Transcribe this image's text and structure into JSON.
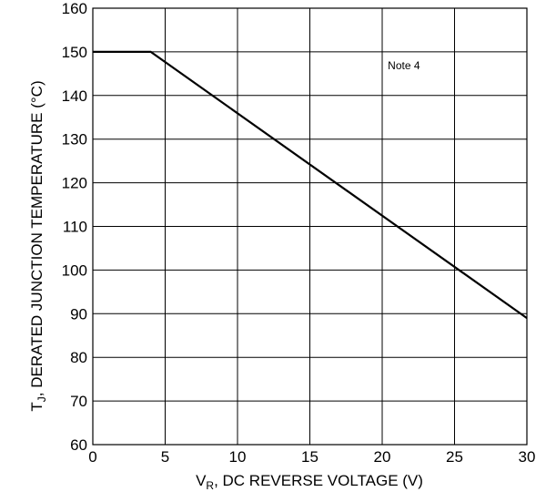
{
  "chart_data": {
    "type": "line",
    "title": "",
    "xlabel": {
      "main": "V",
      "sub": "R",
      "rest": ", DC REVERSE VOLTAGE (V)"
    },
    "ylabel": {
      "main": "T",
      "sub": "J",
      "rest": ", DERATED JUNCTION TEMPERATURE (°C)"
    },
    "xlim": [
      0,
      30
    ],
    "ylim": [
      60,
      160
    ],
    "xticks": [
      "0",
      "5",
      "10",
      "15",
      "20",
      "25",
      "30"
    ],
    "yticks": [
      "60",
      "70",
      "80",
      "90",
      "100",
      "110",
      "120",
      "130",
      "140",
      "150",
      "160"
    ],
    "grid": true,
    "series": [
      {
        "x": [
          0,
          4,
          30
        ],
        "y": [
          150,
          150,
          89
        ]
      }
    ],
    "annotations": [
      {
        "text": "Note 4",
        "x": 21.5,
        "y": 146
      }
    ]
  }
}
